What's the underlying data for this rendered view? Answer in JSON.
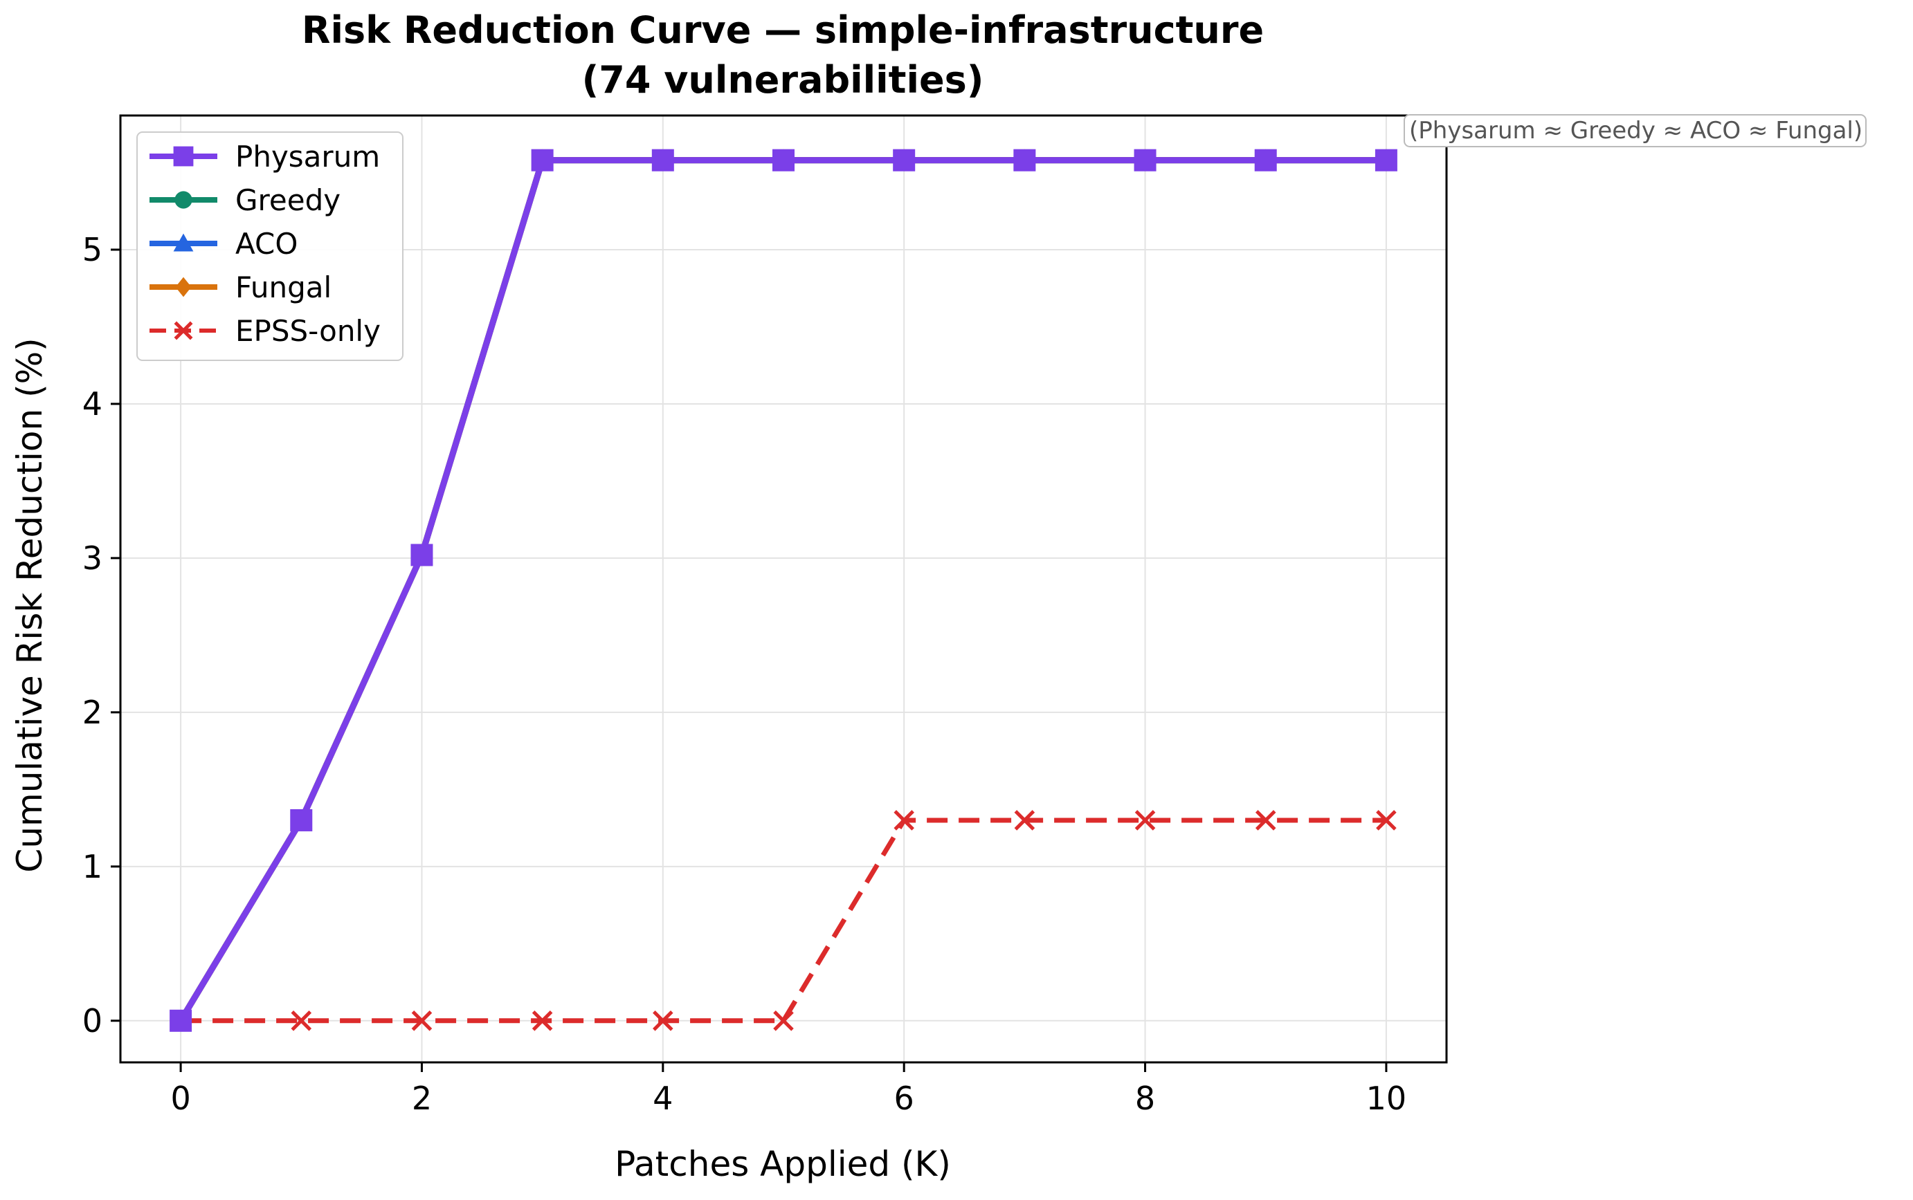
{
  "chart_data": {
    "type": "line",
    "title_line1": "Risk Reduction Curve — simple-infrastructure",
    "title_line2": "(74 vulnerabilities)",
    "xlabel": "Patches Applied (K)",
    "ylabel": "Cumulative Risk Reduction (%)",
    "xlim": [
      -0.5,
      10.5
    ],
    "ylim": [
      -0.27,
      5.87
    ],
    "xticks": [
      0,
      2,
      4,
      6,
      8,
      10
    ],
    "yticks": [
      0,
      1,
      2,
      3,
      4,
      5
    ],
    "grid": true,
    "legend_position": "top-left",
    "annotation": "(Physarum ≈ Greedy ≈ ACO ≈ Fungal)",
    "x": [
      0,
      1,
      2,
      3,
      4,
      5,
      6,
      7,
      8,
      9,
      10
    ],
    "series": [
      {
        "name": "Physarum",
        "color": "#7b3fe8",
        "marker": "square",
        "dash": false,
        "values": [
          0,
          1.3,
          3.02,
          5.58,
          5.58,
          5.58,
          5.58,
          5.58,
          5.58,
          5.58,
          5.58
        ]
      },
      {
        "name": "Greedy",
        "color": "#118a6a",
        "marker": "circle",
        "dash": false,
        "values": [
          0,
          1.3,
          3.02,
          5.58,
          5.58,
          5.58,
          5.58,
          5.58,
          5.58,
          5.58,
          5.58
        ]
      },
      {
        "name": "ACO",
        "color": "#2565e0",
        "marker": "triangle",
        "dash": false,
        "values": [
          0,
          1.3,
          3.02,
          5.58,
          5.58,
          5.58,
          5.58,
          5.58,
          5.58,
          5.58,
          5.58
        ]
      },
      {
        "name": "Fungal",
        "color": "#d9730d",
        "marker": "diamond",
        "dash": false,
        "values": [
          0,
          1.3,
          3.02,
          5.58,
          5.58,
          5.58,
          5.58,
          5.58,
          5.58,
          5.58,
          5.58
        ]
      },
      {
        "name": "EPSS-only",
        "color": "#dc2b2b",
        "marker": "x",
        "dash": true,
        "values": [
          0,
          0,
          0,
          0,
          0,
          0,
          1.3,
          1.3,
          1.3,
          1.3,
          1.3
        ]
      }
    ],
    "draw_order": [
      1,
      2,
      3,
      4,
      0
    ]
  }
}
